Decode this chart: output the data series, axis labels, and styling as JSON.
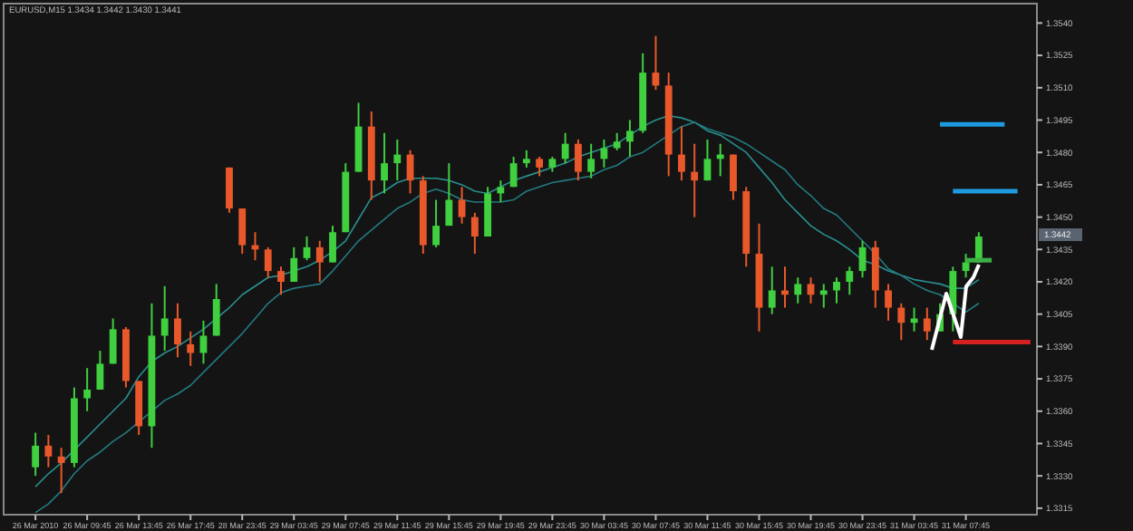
{
  "chart_data": {
    "type": "candlestick",
    "title": "EURUSD,M15  1.3434 1.3442 1.3430 1.3441",
    "categories": [
      "26 Mar 2010",
      null,
      null,
      null,
      "26 Mar 09:45",
      null,
      null,
      null,
      "26 Mar 13:45",
      null,
      null,
      null,
      "26 Mar 17:45",
      null,
      null,
      null,
      "28 Mar 23:45",
      null,
      null,
      null,
      "29 Mar 03:45",
      null,
      null,
      null,
      "29 Mar 07:45",
      null,
      null,
      null,
      "29 Mar 11:45",
      null,
      null,
      null,
      "29 Mar 15:45",
      null,
      null,
      null,
      "29 Mar 19:45",
      null,
      null,
      null,
      "29 Mar 23:45",
      null,
      null,
      null,
      "30 Mar 03:45",
      null,
      null,
      null,
      "30 Mar 07:45",
      null,
      null,
      null,
      "30 Mar 11:45",
      null,
      null,
      null,
      "30 Mar 15:45",
      null,
      null,
      null,
      "30 Mar 19:45",
      null,
      null,
      null,
      "30 Mar 23:45",
      null,
      null,
      null,
      "31 Mar 03:45",
      null,
      null,
      null,
      "31 Mar 07:45",
      null,
      null,
      null,
      null,
      null
    ],
    "ohlc": [
      [
        1.3334,
        1.335,
        1.333,
        1.3344
      ],
      [
        1.3344,
        1.3349,
        1.3334,
        1.3339
      ],
      [
        1.3339,
        1.3343,
        1.3322,
        1.3336
      ],
      [
        1.3336,
        1.3371,
        1.3334,
        1.3366
      ],
      [
        1.3366,
        1.338,
        1.336,
        1.337
      ],
      [
        1.337,
        1.3388,
        1.337,
        1.3382
      ],
      [
        1.3382,
        1.3403,
        1.3382,
        1.3398
      ],
      [
        1.3398,
        1.3399,
        1.3371,
        1.3374
      ],
      [
        1.3374,
        1.3374,
        1.3349,
        1.3353
      ],
      [
        1.3353,
        1.341,
        1.3343,
        1.3395
      ],
      [
        1.3395,
        1.3418,
        1.3388,
        1.3403
      ],
      [
        1.3403,
        1.341,
        1.3385,
        1.3391
      ],
      [
        1.3391,
        1.3397,
        1.3381,
        1.3387
      ],
      [
        1.3387,
        1.3402,
        1.3382,
        1.3395
      ],
      [
        1.3395,
        1.3419,
        1.3395,
        1.3412
      ],
      [
        1.3473,
        1.3473,
        1.3452,
        1.3454
      ],
      [
        1.3454,
        1.3454,
        1.3433,
        1.3437
      ],
      [
        1.3437,
        1.3443,
        1.343,
        1.3435
      ],
      [
        1.3435,
        1.3436,
        1.3422,
        1.3425
      ],
      [
        1.3425,
        1.3427,
        1.3414,
        1.342
      ],
      [
        1.342,
        1.3436,
        1.342,
        1.3431
      ],
      [
        1.3431,
        1.3441,
        1.343,
        1.3436
      ],
      [
        1.3436,
        1.3439,
        1.342,
        1.3429
      ],
      [
        1.3429,
        1.3446,
        1.3429,
        1.3443
      ],
      [
        1.3443,
        1.3475,
        1.3443,
        1.3471
      ],
      [
        1.3471,
        1.3503,
        1.3471,
        1.3492
      ],
      [
        1.3492,
        1.3499,
        1.3458,
        1.3467
      ],
      [
        1.3467,
        1.3489,
        1.3461,
        1.3475
      ],
      [
        1.3475,
        1.3486,
        1.3467,
        1.3479
      ],
      [
        1.3479,
        1.3481,
        1.3461,
        1.3467
      ],
      [
        1.3467,
        1.3469,
        1.3433,
        1.3437
      ],
      [
        1.3437,
        1.3458,
        1.3436,
        1.3446
      ],
      [
        1.3446,
        1.3475,
        1.3446,
        1.3458
      ],
      [
        1.3458,
        1.3464,
        1.3447,
        1.345
      ],
      [
        1.345,
        1.3452,
        1.3433,
        1.3441
      ],
      [
        1.3441,
        1.3464,
        1.3441,
        1.3461
      ],
      [
        1.3461,
        1.3467,
        1.3457,
        1.3464
      ],
      [
        1.3464,
        1.3478,
        1.3464,
        1.3475
      ],
      [
        1.3475,
        1.3481,
        1.3473,
        1.3477
      ],
      [
        1.3477,
        1.3478,
        1.3469,
        1.3473
      ],
      [
        1.3473,
        1.3478,
        1.3471,
        1.3477
      ],
      [
        1.3477,
        1.3489,
        1.3475,
        1.3484
      ],
      [
        1.3484,
        1.3486,
        1.3467,
        1.3471
      ],
      [
        1.3471,
        1.3484,
        1.3468,
        1.3477
      ],
      [
        1.3477,
        1.3486,
        1.3473,
        1.3482
      ],
      [
        1.3482,
        1.3489,
        1.3481,
        1.3485
      ],
      [
        1.3485,
        1.3495,
        1.3478,
        1.349
      ],
      [
        1.349,
        1.3526,
        1.3489,
        1.3517
      ],
      [
        1.3517,
        1.3534,
        1.3509,
        1.3511
      ],
      [
        1.3511,
        1.3517,
        1.3469,
        1.3479
      ],
      [
        1.3479,
        1.3492,
        1.3467,
        1.3471
      ],
      [
        1.3471,
        1.3484,
        1.345,
        1.3467
      ],
      [
        1.3467,
        1.3486,
        1.3467,
        1.3477
      ],
      [
        1.3477,
        1.3484,
        1.3469,
        1.3479
      ],
      [
        1.3479,
        1.3479,
        1.3458,
        1.3462
      ],
      [
        1.3462,
        1.3464,
        1.3427,
        1.3433
      ],
      [
        1.3433,
        1.3447,
        1.3397,
        1.3408
      ],
      [
        1.3408,
        1.3427,
        1.3405,
        1.3416
      ],
      [
        1.3416,
        1.3427,
        1.3408,
        1.3414
      ],
      [
        1.3414,
        1.3422,
        1.341,
        1.3419
      ],
      [
        1.3419,
        1.3422,
        1.341,
        1.3414
      ],
      [
        1.3414,
        1.3419,
        1.3408,
        1.3416
      ],
      [
        1.3416,
        1.3422,
        1.341,
        1.342
      ],
      [
        1.342,
        1.3427,
        1.3414,
        1.3425
      ],
      [
        1.3425,
        1.3439,
        1.3422,
        1.3436
      ],
      [
        1.3436,
        1.3439,
        1.3408,
        1.3416
      ],
      [
        1.3416,
        1.3419,
        1.3402,
        1.3408
      ],
      [
        1.3408,
        1.341,
        1.3393,
        1.3401
      ],
      [
        1.3401,
        1.3408,
        1.3397,
        1.3403
      ],
      [
        1.3403,
        1.3408,
        1.3393,
        1.3397
      ],
      [
        1.3397,
        1.341,
        1.3397,
        1.3405
      ],
      [
        1.3405,
        1.3427,
        1.3397,
        1.3425
      ],
      [
        1.3425,
        1.3433,
        1.3422,
        1.3429
      ],
      [
        1.3429,
        1.3443,
        1.3429,
        1.3441
      ],
      null,
      null,
      null,
      null
    ],
    "series": [
      {
        "type": "line",
        "color": "#2a8f8f",
        "values": [
          1.3325,
          1.3331,
          1.3336,
          1.3342,
          1.3348,
          1.3354,
          1.336,
          1.3366,
          1.3376,
          1.3383,
          1.3387,
          1.339,
          1.3394,
          1.3398,
          1.3403,
          1.3408,
          1.3414,
          1.3418,
          1.3422,
          1.3423,
          1.3425,
          1.3427,
          1.343,
          1.3434,
          1.3439,
          1.3449,
          1.3459,
          1.3462,
          1.3466,
          1.3468,
          1.3468,
          1.3468,
          1.3467,
          1.3465,
          1.3462,
          1.3461,
          1.3464,
          1.3467,
          1.3469,
          1.3471,
          1.3473,
          1.3475,
          1.3478,
          1.348,
          1.3482,
          1.3484,
          1.3488,
          1.3492,
          1.3495,
          1.3497,
          1.3496,
          1.3494,
          1.349,
          1.3488,
          1.3484,
          1.348,
          1.3473,
          1.3466,
          1.3458,
          1.3452,
          1.3446,
          1.3442,
          1.3439,
          1.3435,
          1.343,
          1.3428,
          1.3425,
          1.3423,
          1.3421,
          1.342,
          1.3419,
          1.3417,
          1.3417,
          1.3421,
          null,
          null,
          null,
          null
        ]
      },
      {
        "type": "line",
        "color": "#237a80",
        "values": [
          1.3313,
          1.3317,
          1.3323,
          1.3331,
          1.3337,
          1.3341,
          1.3346,
          1.335,
          1.3355,
          1.336,
          1.3365,
          1.3368,
          1.3372,
          1.3378,
          1.3384,
          1.339,
          1.3396,
          1.3403,
          1.341,
          1.3415,
          1.3417,
          1.3418,
          1.3419,
          1.3425,
          1.3432,
          1.3439,
          1.3444,
          1.3449,
          1.3454,
          1.3457,
          1.3461,
          1.3463,
          1.3461,
          1.3458,
          1.3457,
          1.3457,
          1.3457,
          1.3458,
          1.3462,
          1.3464,
          1.3466,
          1.3467,
          1.3468,
          1.3469,
          1.3472,
          1.3474,
          1.3478,
          1.348,
          1.3484,
          1.3488,
          1.3492,
          1.3494,
          1.3491,
          1.3489,
          1.3487,
          1.3484,
          1.348,
          1.3476,
          1.3472,
          1.3465,
          1.346,
          1.3454,
          1.3451,
          1.3445,
          1.3439,
          1.3433,
          1.3426,
          1.3423,
          1.3419,
          1.3416,
          1.3414,
          1.341,
          1.3406,
          1.341,
          null,
          null,
          null,
          null
        ]
      },
      {
        "type": "line",
        "color": "#1e9be0",
        "values": [
          null,
          null,
          null,
          null,
          null,
          null,
          null,
          null,
          null,
          null,
          null,
          null,
          null,
          null,
          null,
          null,
          null,
          null,
          null,
          null,
          null,
          null,
          null,
          null,
          null,
          null,
          null,
          null,
          null,
          null,
          null,
          null,
          null,
          null,
          null,
          null,
          null,
          null,
          null,
          null,
          null,
          null,
          null,
          null,
          null,
          null,
          null,
          null,
          null,
          null,
          null,
          null,
          null,
          null,
          null,
          null,
          null,
          null,
          null,
          null,
          null,
          null,
          null,
          null,
          null,
          null,
          null,
          null,
          null,
          null,
          1.3493,
          1.3493,
          1.3493,
          1.3493,
          1.3493,
          1.3493,
          null,
          null
        ]
      },
      {
        "type": "line",
        "color": "#1e9be0",
        "values": [
          null,
          null,
          null,
          null,
          null,
          null,
          null,
          null,
          null,
          null,
          null,
          null,
          null,
          null,
          null,
          null,
          null,
          null,
          null,
          null,
          null,
          null,
          null,
          null,
          null,
          null,
          null,
          null,
          null,
          null,
          null,
          null,
          null,
          null,
          null,
          null,
          null,
          null,
          null,
          null,
          null,
          null,
          null,
          null,
          null,
          null,
          null,
          null,
          null,
          null,
          null,
          null,
          null,
          null,
          null,
          null,
          null,
          null,
          null,
          null,
          null,
          null,
          null,
          null,
          null,
          null,
          null,
          null,
          null,
          null,
          null,
          1.3462,
          1.3462,
          1.3462,
          1.3462,
          1.3462,
          1.3462,
          null
        ]
      },
      {
        "type": "line",
        "color": "#3cb043",
        "values": [
          null,
          null,
          null,
          null,
          null,
          null,
          null,
          null,
          null,
          null,
          null,
          null,
          null,
          null,
          null,
          null,
          null,
          null,
          null,
          null,
          null,
          null,
          null,
          null,
          null,
          null,
          null,
          null,
          null,
          null,
          null,
          null,
          null,
          null,
          null,
          null,
          null,
          null,
          null,
          null,
          null,
          null,
          null,
          null,
          null,
          null,
          null,
          null,
          null,
          null,
          null,
          null,
          null,
          null,
          null,
          null,
          null,
          null,
          null,
          null,
          null,
          null,
          null,
          null,
          null,
          null,
          null,
          null,
          null,
          null,
          null,
          null,
          1.343,
          1.343,
          1.343,
          null,
          null,
          null
        ]
      },
      {
        "type": "line",
        "color": "#d42020",
        "values": [
          null,
          null,
          null,
          null,
          null,
          null,
          null,
          null,
          null,
          null,
          null,
          null,
          null,
          null,
          null,
          null,
          null,
          null,
          null,
          null,
          null,
          null,
          null,
          null,
          null,
          null,
          null,
          null,
          null,
          null,
          null,
          null,
          null,
          null,
          null,
          null,
          null,
          null,
          null,
          null,
          null,
          null,
          null,
          null,
          null,
          null,
          null,
          null,
          null,
          null,
          null,
          null,
          null,
          null,
          null,
          null,
          null,
          null,
          null,
          null,
          null,
          null,
          null,
          null,
          null,
          null,
          null,
          null,
          null,
          null,
          null,
          1.3392,
          1.3392,
          1.3392,
          1.3392,
          1.3392,
          1.3392,
          1.3392
        ]
      }
    ],
    "ylim": [
      1.3312,
      1.3549
    ],
    "yticks": [
      1.3315,
      {
        "value": 1.333,
        "label": "1.3330"
      },
      1.3345,
      {
        "value": 1.336,
        "label": "1.3360"
      },
      1.3375,
      {
        "value": 1.339,
        "label": "1.3390"
      },
      1.3405,
      {
        "value": 1.342,
        "label": "1.3420"
      },
      1.3435,
      {
        "value": 1.345,
        "label": "1.3450"
      },
      1.3465,
      {
        "value": 1.348,
        "label": "1.3480"
      },
      1.3495,
      {
        "value": 1.351,
        "label": "1.3510"
      },
      1.3525,
      {
        "value": 1.354,
        "label": "1.3540"
      }
    ],
    "annotations": [
      "1.3442"
    ]
  }
}
